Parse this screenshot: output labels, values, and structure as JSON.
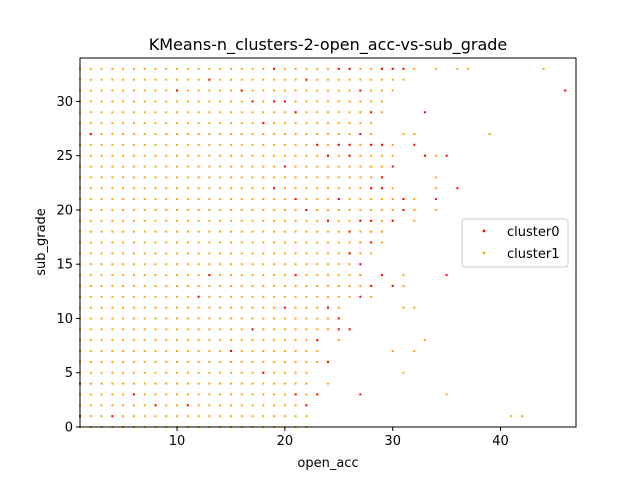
{
  "chart_data": {
    "type": "scatter",
    "title": "KMeans-n_clusters-2-open_acc-vs-sub_grade",
    "xlabel": "open_acc",
    "ylabel": "sub_grade",
    "xlim": [
      1,
      47
    ],
    "ylim": [
      0,
      34
    ],
    "xticks": [
      10,
      20,
      30,
      40
    ],
    "yticks": [
      0,
      5,
      10,
      15,
      20,
      25,
      30
    ],
    "grid": false,
    "legend_placement": "center-right",
    "series": [
      {
        "name": "cluster0",
        "color": "#ff0000",
        "points": [
          [
            1,
            1
          ],
          [
            1,
            4
          ],
          [
            2,
            27
          ],
          [
            4,
            1
          ],
          [
            6,
            3
          ],
          [
            8,
            2
          ],
          [
            10,
            31
          ],
          [
            11,
            2
          ],
          [
            12,
            12
          ],
          [
            13,
            32
          ],
          [
            13,
            14
          ],
          [
            15,
            7
          ],
          [
            16,
            31
          ],
          [
            17,
            30
          ],
          [
            17,
            9
          ],
          [
            18,
            28
          ],
          [
            18,
            5
          ],
          [
            19,
            33
          ],
          [
            19,
            22
          ],
          [
            19,
            30
          ],
          [
            20,
            30
          ],
          [
            20,
            24
          ],
          [
            20,
            11
          ],
          [
            21,
            29
          ],
          [
            21,
            21
          ],
          [
            21,
            14
          ],
          [
            21,
            3
          ],
          [
            22,
            2
          ],
          [
            22,
            20
          ],
          [
            22,
            32
          ],
          [
            23,
            26
          ],
          [
            23,
            8
          ],
          [
            23,
            3
          ],
          [
            24,
            25
          ],
          [
            24,
            19
          ],
          [
            24,
            11
          ],
          [
            24,
            6
          ],
          [
            25,
            33
          ],
          [
            25,
            26
          ],
          [
            25,
            21
          ],
          [
            25,
            10
          ],
          [
            25,
            9
          ],
          [
            26,
            33
          ],
          [
            26,
            26
          ],
          [
            26,
            25
          ],
          [
            26,
            18
          ],
          [
            26,
            16
          ],
          [
            26,
            9
          ],
          [
            27,
            31
          ],
          [
            27,
            27
          ],
          [
            27,
            19
          ],
          [
            27,
            15
          ],
          [
            27,
            12
          ],
          [
            27,
            3
          ],
          [
            28,
            26
          ],
          [
            28,
            22
          ],
          [
            28,
            19
          ],
          [
            28,
            29
          ],
          [
            28,
            17
          ],
          [
            28,
            13
          ],
          [
            29,
            33
          ],
          [
            29,
            26
          ],
          [
            29,
            23
          ],
          [
            29,
            14
          ],
          [
            29,
            22
          ],
          [
            30,
            33
          ],
          [
            30,
            19
          ],
          [
            30,
            13
          ],
          [
            30,
            24
          ],
          [
            31,
            21
          ],
          [
            31,
            20
          ],
          [
            31,
            33
          ],
          [
            32,
            26
          ],
          [
            33,
            29
          ],
          [
            33,
            25
          ],
          [
            34,
            21
          ],
          [
            35,
            25
          ],
          [
            35,
            14
          ],
          [
            36,
            22
          ],
          [
            46,
            31
          ]
        ]
      },
      {
        "name": "cluster1",
        "color": "#ffa500",
        "points_description_note": null
      }
    ],
    "cluster1_grid": {
      "rows": [
        [
          33,
          1,
          30
        ],
        [
          32,
          1,
          30
        ],
        [
          31,
          1,
          30
        ],
        [
          30,
          1,
          29
        ],
        [
          29,
          1,
          29
        ],
        [
          28,
          1,
          28
        ],
        [
          27,
          1,
          28
        ],
        [
          26,
          1,
          30
        ],
        [
          25,
          1,
          30
        ],
        [
          24,
          1,
          29
        ],
        [
          23,
          1,
          29
        ],
        [
          22,
          1,
          30
        ],
        [
          21,
          1,
          32
        ],
        [
          20,
          1,
          30
        ],
        [
          19,
          1,
          30
        ],
        [
          18,
          1,
          29
        ],
        [
          17,
          1,
          29
        ],
        [
          16,
          1,
          28
        ],
        [
          15,
          1,
          27
        ],
        [
          14,
          1,
          27
        ],
        [
          13,
          1,
          28
        ],
        [
          12,
          1,
          26
        ],
        [
          11,
          1,
          24
        ],
        [
          10,
          1,
          24
        ],
        [
          9,
          1,
          24
        ],
        [
          8,
          1,
          23
        ],
        [
          7,
          1,
          23
        ],
        [
          6,
          1,
          23
        ],
        [
          5,
          1,
          22
        ],
        [
          4,
          1,
          22
        ],
        [
          3,
          1,
          22
        ],
        [
          2,
          1,
          22
        ],
        [
          1,
          1,
          22
        ],
        [
          0,
          1,
          22
        ]
      ],
      "extra_points": [
        [
          32,
          33
        ],
        [
          34,
          33
        ],
        [
          36,
          33
        ],
        [
          37,
          33
        ],
        [
          44,
          33
        ],
        [
          31,
          32
        ],
        [
          31,
          27
        ],
        [
          32,
          27
        ],
        [
          39,
          27
        ],
        [
          33,
          25
        ],
        [
          34,
          25
        ],
        [
          34,
          23
        ],
        [
          34,
          22
        ],
        [
          34,
          20
        ],
        [
          32,
          20
        ],
        [
          32,
          19
        ],
        [
          31,
          14
        ],
        [
          31,
          13
        ],
        [
          30,
          13
        ],
        [
          31,
          11
        ],
        [
          32,
          11
        ],
        [
          33,
          8
        ],
        [
          30,
          7
        ],
        [
          32,
          7
        ],
        [
          31,
          5
        ],
        [
          35,
          3
        ],
        [
          41,
          1
        ],
        [
          42,
          1
        ],
        [
          26,
          30
        ],
        [
          27,
          29
        ],
        [
          26,
          28
        ],
        [
          27,
          26
        ],
        [
          28,
          24
        ],
        [
          29,
          21
        ],
        [
          29,
          18
        ],
        [
          28,
          18
        ],
        [
          27,
          17
        ],
        [
          26,
          16
        ],
        [
          27,
          14
        ],
        [
          26,
          13
        ],
        [
          28,
          12
        ],
        [
          25,
          11
        ],
        [
          25,
          8
        ],
        [
          24,
          6
        ],
        [
          23,
          3
        ],
        [
          24,
          4
        ]
      ]
    }
  },
  "legend": {
    "items": [
      {
        "label": "cluster0",
        "color": "#ff0000"
      },
      {
        "label": "cluster1",
        "color": "#ffa500"
      }
    ]
  }
}
